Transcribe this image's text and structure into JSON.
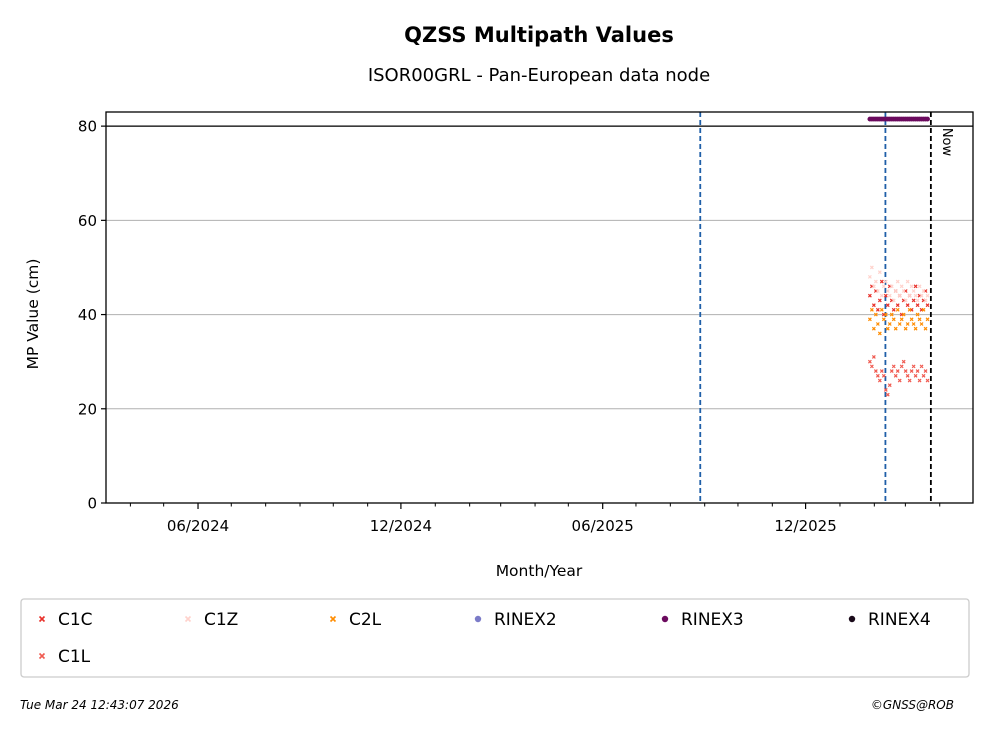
{
  "chart_data": {
    "type": "scatter",
    "title": "QZSS Multipath Values",
    "subtitle": "ISOR00GRL - Pan-European data node",
    "xlabel": "Month/Year",
    "ylabel": "MP Value (cm)",
    "xlim": [
      "2024-03-10",
      "2026-05-01"
    ],
    "ylim": [
      0,
      83
    ],
    "x_tick_labels": [
      "06/2024",
      "12/2024",
      "06/2025",
      "12/2025"
    ],
    "x_ticks": [
      "2024-06-01",
      "2024-12-01",
      "2025-06-01",
      "2025-12-01"
    ],
    "x_minor_ticks": [
      "2024-04-01",
      "2024-05-01",
      "2024-07-01",
      "2024-08-01",
      "2024-09-01",
      "2024-10-01",
      "2024-11-01",
      "2025-01-01",
      "2025-02-01",
      "2025-03-01",
      "2025-04-01",
      "2025-05-01",
      "2025-07-01",
      "2025-08-01",
      "2025-09-01",
      "2025-10-01",
      "2025-11-01",
      "2026-01-01",
      "2026-02-01",
      "2026-03-01",
      "2026-04-01"
    ],
    "y_ticks": [
      0,
      20,
      40,
      60,
      80
    ],
    "y_tick_labels": [
      "0",
      "20",
      "40",
      "60",
      "80"
    ],
    "grid": "horizontal",
    "reference_line_y": 80,
    "vertical_lines": [
      {
        "x": "2025-08-28",
        "style": "dashed",
        "color": "#1f5fa8"
      },
      {
        "x": "2026-02-11",
        "style": "dashed",
        "color": "#1f5fa8"
      },
      {
        "x": "2026-03-24",
        "style": "dashed",
        "color": "#000000",
        "label": "Now"
      }
    ],
    "series": [
      {
        "name": "C1C",
        "color": "#e8302a",
        "marker": "x",
        "x_start": "2026-01-28",
        "x_end": "2026-03-21",
        "y_values": [
          44,
          46,
          42,
          45,
          41,
          43,
          47,
          40,
          44,
          42,
          46,
          43,
          41,
          45,
          42,
          44,
          40,
          43,
          45,
          42,
          44,
          41,
          43,
          46,
          42,
          44,
          41,
          43,
          45,
          42
        ]
      },
      {
        "name": "C1Z",
        "color": "#ffd2cc",
        "marker": "x",
        "x_start": "2026-01-28",
        "x_end": "2026-03-21",
        "y_values": [
          48,
          50,
          46,
          47,
          45,
          49,
          44,
          46,
          47,
          45,
          44,
          46,
          43,
          45,
          47,
          44,
          46,
          45,
          43,
          47,
          44,
          46,
          45,
          44,
          43,
          46,
          44,
          45,
          43,
          44
        ]
      },
      {
        "name": "C2L",
        "color": "#ff8c00",
        "marker": "x",
        "x_start": "2026-01-28",
        "x_end": "2026-03-21",
        "y_values": [
          39,
          41,
          37,
          40,
          38,
          36,
          41,
          39,
          40,
          37,
          38,
          40,
          39,
          37,
          41,
          38,
          39,
          40,
          37,
          38,
          41,
          39,
          38,
          37,
          40,
          39,
          38,
          41,
          37,
          39
        ]
      },
      {
        "name": "RINEX2",
        "color": "#7b7bc8",
        "marker": "o",
        "x_start": "",
        "x_end": "",
        "y_values": []
      },
      {
        "name": "RINEX3",
        "color": "#6b0a5e",
        "marker": "o",
        "x_start": "2026-01-28",
        "x_end": "2026-03-21",
        "y_values": [
          81.5,
          81.5,
          81.5,
          81.5,
          81.5,
          81.5,
          81.5,
          81.5,
          81.5,
          81.5,
          81.5,
          81.5,
          81.5,
          81.5,
          81.5,
          81.5,
          81.5,
          81.5,
          81.5,
          81.5,
          81.5,
          81.5,
          81.5,
          81.5,
          81.5,
          81.5,
          81.5,
          81.5,
          81.5,
          81.5
        ]
      },
      {
        "name": "RINEX4",
        "color": "#1a0a1a",
        "marker": "o",
        "x_start": "",
        "x_end": "",
        "y_values": []
      },
      {
        "name": "C1L",
        "color": "#f05a50",
        "marker": "x",
        "x_start": "2026-01-28",
        "x_end": "2026-03-21",
        "y_values": [
          30,
          29,
          31,
          28,
          27,
          26,
          28,
          27,
          24,
          23,
          25,
          28,
          29,
          27,
          28,
          26,
          29,
          30,
          28,
          27,
          26,
          28,
          29,
          27,
          28,
          26,
          29,
          27,
          28,
          26
        ]
      }
    ],
    "legend_placement": "below"
  },
  "footer": {
    "timestamp": "Tue Mar 24 12:43:07 2026",
    "credit": "©GNSS@ROB"
  }
}
